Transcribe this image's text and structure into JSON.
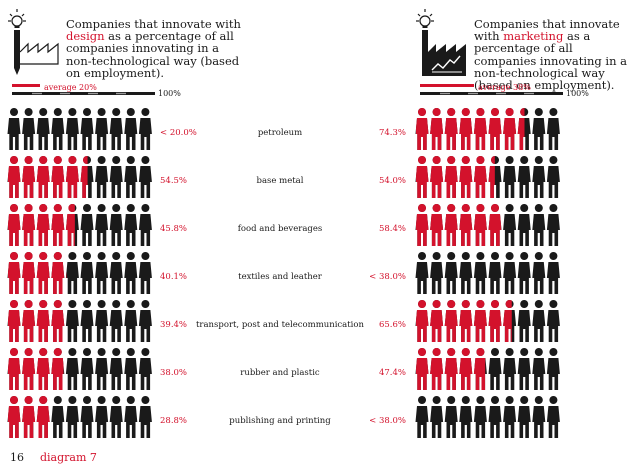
{
  "colors": {
    "accent": "#d3122c",
    "dark": "#1a1a1a",
    "grey": "#9a9a9a"
  },
  "left_panel": {
    "icon": "factory-pencil-icon",
    "headline_pre": "Companies that innovate with",
    "headline_hl": "design",
    "headline_post": "as a percentage of all companies innovating in a non-technological way (based on employment).",
    "average_label": "average 20%",
    "scale_end": "100%"
  },
  "right_panel": {
    "icon": "factory-chart-icon",
    "headline_pre": "Companies that innovate with",
    "headline_hl": "marketing",
    "headline_post": "as a percentage of all companies innovating in a non-technological way (based on employment).",
    "average_label": "average 38%",
    "scale_end": "100%"
  },
  "footer": {
    "page_number": "16",
    "label": "diagram 7"
  },
  "chart_data": {
    "type": "table",
    "unit": "percent",
    "people_per_row": 10,
    "categories": [
      "petroleum",
      "base metal",
      "food and beverages",
      "textiles and leather",
      "transport, post and telecommunication",
      "rubber and plastic",
      "publishing and printing"
    ],
    "series": [
      {
        "name": "design",
        "labels": [
          "< 20.0%",
          "54.5%",
          "45.8%",
          "40.1%",
          "39.4%",
          "38.0%",
          "28.8%"
        ],
        "values": [
          0,
          54.5,
          45.8,
          40.1,
          39.4,
          38.0,
          28.8
        ],
        "average": 20
      },
      {
        "name": "marketing",
        "labels": [
          "74.3%",
          "54.0%",
          "58.4%",
          "< 38.0%",
          "65.6%",
          "47.4%",
          "< 38.0%"
        ],
        "values": [
          74.3,
          54.0,
          58.4,
          0,
          65.6,
          47.4,
          0
        ],
        "average": 38
      }
    ]
  }
}
